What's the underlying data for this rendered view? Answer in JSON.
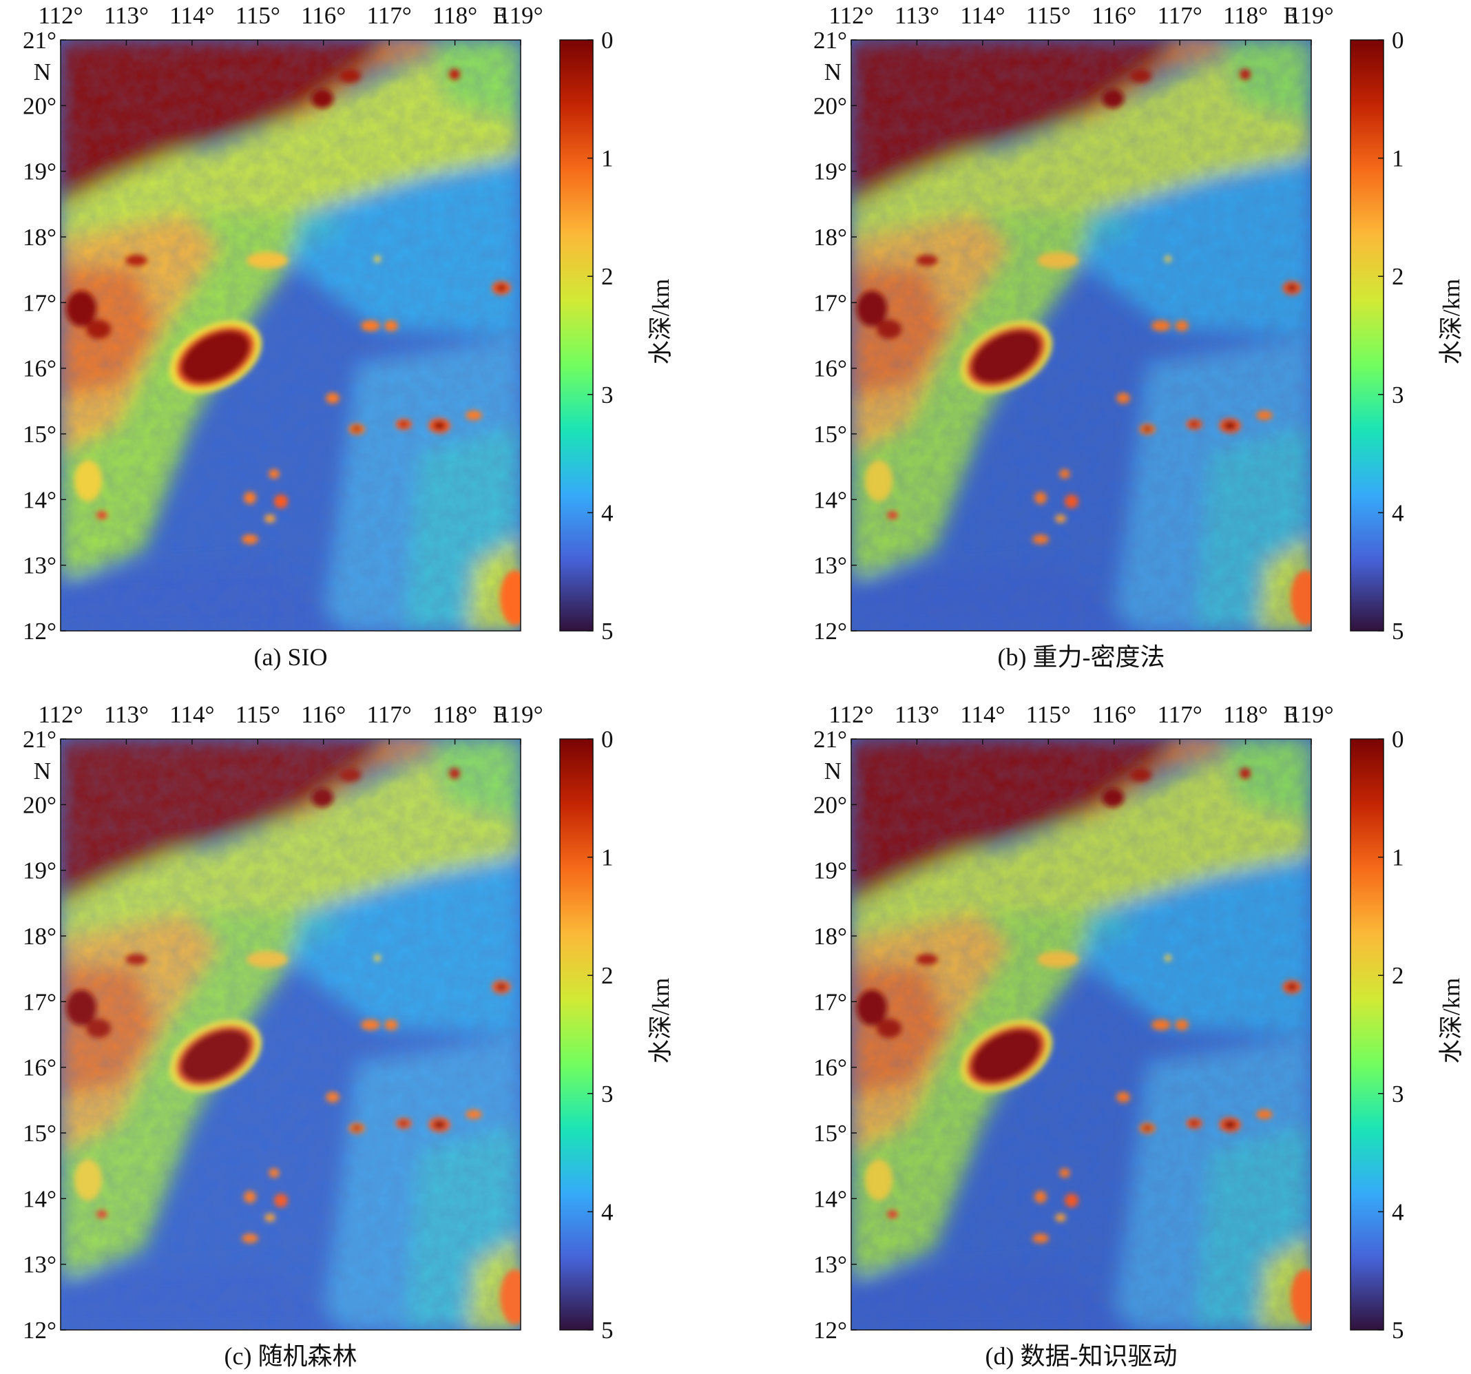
{
  "figure": {
    "panels": [
      {
        "id": "a",
        "caption": "(a) SIO",
        "variant": 0
      },
      {
        "id": "b",
        "caption": "(b) 重力-密度法",
        "variant": 1
      },
      {
        "id": "c",
        "caption": "(c) 随机森林",
        "variant": 2
      },
      {
        "id": "d",
        "caption": "(d) 数据-知识驱动",
        "variant": 3
      }
    ],
    "lon_ticks": [
      "112°",
      "113°",
      "114°",
      "115°",
      "116°",
      "117°",
      "118°",
      "119°"
    ],
    "lon_hemisphere": "E",
    "lat_ticks": [
      "21°",
      "20°",
      "19°",
      "18°",
      "17°",
      "16°",
      "15°",
      "14°",
      "13°",
      "12°"
    ],
    "lat_hemisphere": "N",
    "colorbar": {
      "label": "水深/km",
      "ticks": [
        "0",
        "1",
        "2",
        "3",
        "4",
        "5"
      ],
      "range": [
        0,
        5
      ],
      "colormap": [
        "#7a0403",
        "#c42503",
        "#f66b19",
        "#fbb938",
        "#d2e935",
        "#72fe5e",
        "#1ae4b6",
        "#36aaf9",
        "#4662d7",
        "#30123b"
      ]
    },
    "map_extent": {
      "lon": [
        112,
        119
      ],
      "lat": [
        12,
        21
      ]
    }
  }
}
